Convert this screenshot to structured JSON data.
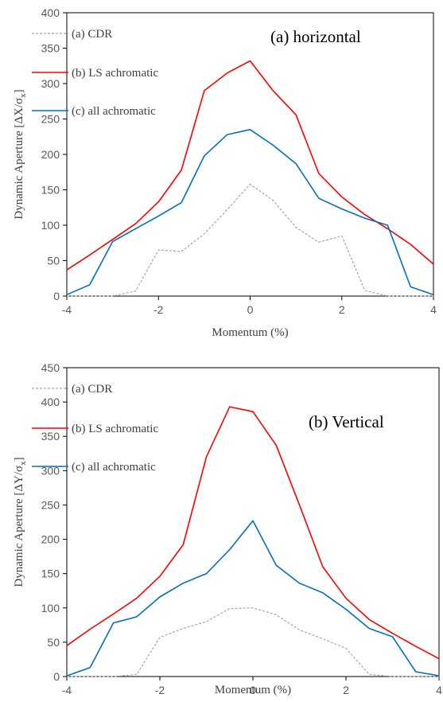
{
  "chart_data": [
    {
      "type": "line",
      "title": "(a) horizontal",
      "xlabel": "Momentum  (%)",
      "ylabel": "Dynamic  Aperture  [ΔX/σ",
      "ylabel_sub": "x",
      "ylabel_end": "]",
      "xlim": [
        -4,
        4
      ],
      "ylim": [
        0,
        400
      ],
      "xticks": [
        -4,
        -2,
        0,
        2,
        4
      ],
      "xtick_labels": [
        "-4",
        "-2",
        "0",
        "2",
        "4"
      ],
      "yticks": [
        0,
        50,
        100,
        150,
        200,
        250,
        300,
        350,
        400
      ],
      "ytick_labels": [
        "0",
        "50",
        "100",
        "150",
        "200",
        "250",
        "300",
        "350",
        "400"
      ],
      "grid": false,
      "legend_position": "top-left",
      "x": [
        -4,
        -3.5,
        -3,
        -2.5,
        -2,
        -1.5,
        -1,
        -0.5,
        0,
        0.5,
        1,
        1.5,
        2,
        2.5,
        3,
        3.5,
        4
      ],
      "series": [
        {
          "name": "(a) CDR",
          "color": "#a6a6a6",
          "dash": true,
          "values": [
            0,
            0,
            0,
            7,
            65,
            63,
            88,
            122,
            158,
            135,
            97,
            76,
            85,
            8,
            0,
            0,
            0
          ]
        },
        {
          "name": "(b) LS achromatic",
          "color": "#ff0000",
          "dash": false,
          "values": [
            37,
            58,
            80,
            102,
            133,
            178,
            290,
            315,
            332,
            290,
            256,
            173,
            140,
            115,
            95,
            73,
            45
          ]
        },
        {
          "name": "(c)  all achromatic",
          "color": "#0070c0",
          "dash": false,
          "values": [
            2,
            16,
            77,
            95,
            113,
            132,
            198,
            228,
            235,
            213,
            187,
            138,
            123,
            110,
            100,
            13,
            2
          ]
        }
      ]
    },
    {
      "type": "line",
      "title": "(b) Vertical",
      "xlabel": "Momentum  (%)",
      "ylabel": "Dynamic  Aperture  [ΔY/σ",
      "ylabel_sub": "x",
      "ylabel_end": "]",
      "xlim": [
        -4,
        4
      ],
      "ylim": [
        0,
        450
      ],
      "xticks": [
        -4,
        -2,
        0,
        2,
        4
      ],
      "xtick_labels": [
        "-4",
        "-2",
        "0",
        "2",
        "4"
      ],
      "yticks": [
        0,
        50,
        100,
        150,
        200,
        250,
        300,
        350,
        400,
        450
      ],
      "ytick_labels": [
        "0",
        "50",
        "100",
        "150",
        "200",
        "250",
        "300",
        "350",
        "400",
        "450"
      ],
      "grid": false,
      "legend_position": "top-left",
      "x": [
        -4,
        -3.5,
        -3,
        -2.5,
        -2,
        -1.5,
        -1,
        -0.5,
        0,
        0.5,
        1,
        1.5,
        2,
        2.5,
        3,
        3.5,
        4
      ],
      "series": [
        {
          "name": "(a) CDR",
          "color": "#a6a6a6",
          "dash": true,
          "values": [
            0,
            0,
            0,
            3,
            57,
            70,
            80,
            99,
            100,
            90,
            68,
            55,
            41,
            3,
            0,
            0,
            0
          ]
        },
        {
          "name": "(b) LS achromatic",
          "color": "#ff0000",
          "dash": false,
          "values": [
            45,
            69,
            91,
            114,
            146,
            192,
            320,
            393,
            386,
            337,
            250,
            160,
            114,
            83,
            63,
            44,
            26
          ]
        },
        {
          "name": "(c)  all achromatic",
          "color": "#0070c0",
          "dash": false,
          "values": [
            1,
            13,
            78,
            87,
            116,
            136,
            150,
            185,
            227,
            162,
            136,
            122,
            98,
            70,
            58,
            7,
            1
          ]
        }
      ]
    }
  ]
}
